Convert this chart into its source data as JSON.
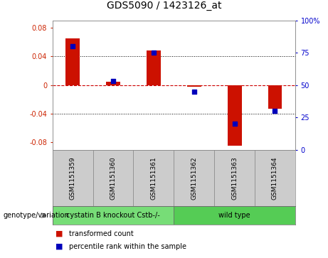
{
  "title": "GDS5090 / 1423126_at",
  "samples": [
    "GSM1151359",
    "GSM1151360",
    "GSM1151361",
    "GSM1151362",
    "GSM1151363",
    "GSM1151364"
  ],
  "red_values": [
    0.065,
    0.005,
    0.048,
    -0.002,
    -0.085,
    -0.033
  ],
  "blue_values_pct": [
    80,
    53,
    75,
    45,
    20,
    30
  ],
  "ylim_left": [
    -0.09,
    0.09
  ],
  "ylim_right": [
    0,
    100
  ],
  "yticks_left": [
    -0.08,
    -0.04,
    0.0,
    0.04,
    0.08
  ],
  "yticks_right": [
    0,
    25,
    50,
    75,
    100
  ],
  "ytick_labels_left": [
    "-0.08",
    "-0.04",
    "0",
    "0.04",
    "0.08"
  ],
  "ytick_labels_right": [
    "0",
    "25",
    "50",
    "75",
    "100%"
  ],
  "groups": [
    {
      "label": "cystatin B knockout Cstb-/-",
      "indices": [
        0,
        1,
        2
      ],
      "color": "#77dd77"
    },
    {
      "label": "wild type",
      "indices": [
        3,
        4,
        5
      ],
      "color": "#55cc55"
    }
  ],
  "genotype_label": "genotype/variation",
  "bar_color": "#cc1100",
  "dot_color": "#0000bb",
  "zero_line_color": "#cc0000",
  "grid_color": "#000000",
  "plot_bg": "#ffffff",
  "sample_box_color": "#cccccc",
  "sample_box_edge": "#999999",
  "legend_red": "transformed count",
  "legend_blue": "percentile rank within the sample",
  "bar_width": 0.35,
  "dot_size": 22
}
